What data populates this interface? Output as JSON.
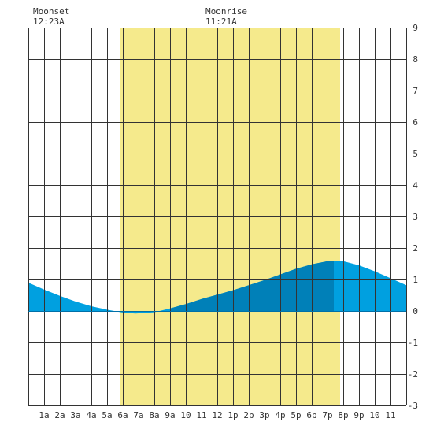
{
  "moon": {
    "moonset_label": "Moonset",
    "moonset_time": "12:23A",
    "moonrise_label": "Moonrise",
    "moonrise_time": "11:21A"
  },
  "chart_data": {
    "type": "area",
    "title": "",
    "xlabel": "",
    "ylabel": "",
    "xlim": [
      0,
      24
    ],
    "ylim": [
      -3,
      9
    ],
    "grid": true,
    "x_tick_labels": [
      "1a",
      "2a",
      "3a",
      "4a",
      "5a",
      "6a",
      "7a",
      "8a",
      "9a",
      "10",
      "11",
      "12",
      "1p",
      "2p",
      "3p",
      "4p",
      "5p",
      "6p",
      "7p",
      "8p",
      "9p",
      "10",
      "11"
    ],
    "y_tick_labels": [
      "-3",
      "-2",
      "-1",
      "0",
      "1",
      "2",
      "3",
      "4",
      "5",
      "6",
      "7",
      "8",
      "9"
    ],
    "daylight": {
      "start_hour": 5.8,
      "end_hour": 19.8
    },
    "moonset_hour": 0.38,
    "moonrise_hour": 11.35,
    "highlight_range": [
      9.0,
      19.4
    ],
    "tide": {
      "x": [
        0,
        1,
        2,
        3,
        4,
        5,
        6,
        6.8,
        8,
        9,
        10,
        11,
        12,
        13,
        14,
        15,
        16,
        17,
        18,
        19,
        19.4,
        20,
        21,
        22,
        23,
        24
      ],
      "y": [
        0.9,
        0.68,
        0.48,
        0.3,
        0.15,
        0.04,
        -0.05,
        -0.08,
        -0.04,
        0.08,
        0.22,
        0.38,
        0.52,
        0.66,
        0.82,
        0.98,
        1.16,
        1.34,
        1.48,
        1.58,
        1.6,
        1.58,
        1.45,
        1.26,
        1.04,
        0.82
      ]
    },
    "colors": {
      "daylight": "#f5ea8c",
      "tide": "#00a0e0",
      "tide_highlight": "#0080b8",
      "grid": "#333333",
      "zero_line": "#0070a8"
    }
  }
}
